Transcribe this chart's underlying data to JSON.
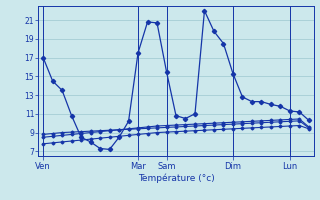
{
  "bg_color": "#cce8ec",
  "grid_color": "#9ec8d0",
  "line_color": "#1535a8",
  "text_color": "#1535a8",
  "xlabel": "Température (°c)",
  "x_ticks_labels": [
    "Ven",
    "Mar",
    "Sam",
    "Dim",
    "Lun"
  ],
  "x_ticks_pos": [
    0,
    10,
    13,
    20,
    26
  ],
  "ylim": [
    6.5,
    22.5
  ],
  "yticks": [
    7,
    9,
    11,
    13,
    15,
    17,
    19,
    21
  ],
  "xlim": [
    -0.5,
    28.5
  ],
  "x": [
    0,
    1,
    2,
    3,
    4,
    5,
    6,
    7,
    8,
    9,
    10,
    11,
    12,
    13,
    14,
    15,
    16,
    17,
    18,
    19,
    20,
    21,
    22,
    23,
    24,
    25,
    26,
    27,
    28
  ],
  "line1_y": [
    17.0,
    14.5,
    13.5,
    10.8,
    8.5,
    8.0,
    7.3,
    7.2,
    8.5,
    10.2,
    17.5,
    20.8,
    20.7,
    15.5,
    10.8,
    10.5,
    11.0,
    22.0,
    19.8,
    18.5,
    15.3,
    12.8,
    12.3,
    12.3,
    12.0,
    11.8,
    11.3,
    11.2,
    10.3
  ],
  "line2_y": [
    8.5,
    8.6,
    8.7,
    8.8,
    8.9,
    9.0,
    9.1,
    9.2,
    9.3,
    9.4,
    9.5,
    9.6,
    9.7,
    9.75,
    9.8,
    9.85,
    9.9,
    9.95,
    10.0,
    10.05,
    10.1,
    10.15,
    10.2,
    10.25,
    10.3,
    10.35,
    10.4,
    10.45,
    9.6
  ],
  "line3_y": [
    8.8,
    8.9,
    9.0,
    9.05,
    9.1,
    9.15,
    9.2,
    9.25,
    9.3,
    9.35,
    9.4,
    9.45,
    9.5,
    9.55,
    9.6,
    9.65,
    9.7,
    9.75,
    9.8,
    9.85,
    9.9,
    9.95,
    10.0,
    10.05,
    10.1,
    10.15,
    10.2,
    10.25,
    9.5
  ],
  "line4_y": [
    7.8,
    7.9,
    8.0,
    8.1,
    8.2,
    8.3,
    8.4,
    8.5,
    8.6,
    8.7,
    8.8,
    8.9,
    9.0,
    9.05,
    9.1,
    9.15,
    9.2,
    9.25,
    9.3,
    9.35,
    9.4,
    9.45,
    9.5,
    9.55,
    9.6,
    9.65,
    9.7,
    9.75,
    9.4
  ]
}
